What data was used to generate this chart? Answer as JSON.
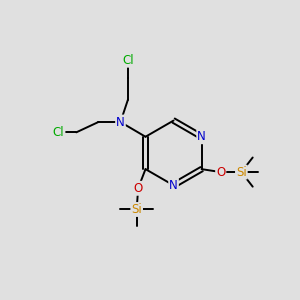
{
  "background_color": "#e0e0e0",
  "atom_colors": {
    "C": "#000000",
    "N": "#0000cc",
    "O": "#cc0000",
    "Si": "#cc8800",
    "Cl": "#00aa00",
    "H": "#000000"
  },
  "bond_color": "#000000",
  "font_size": 8.5,
  "fig_size": [
    3.0,
    3.0
  ],
  "dpi": 100
}
